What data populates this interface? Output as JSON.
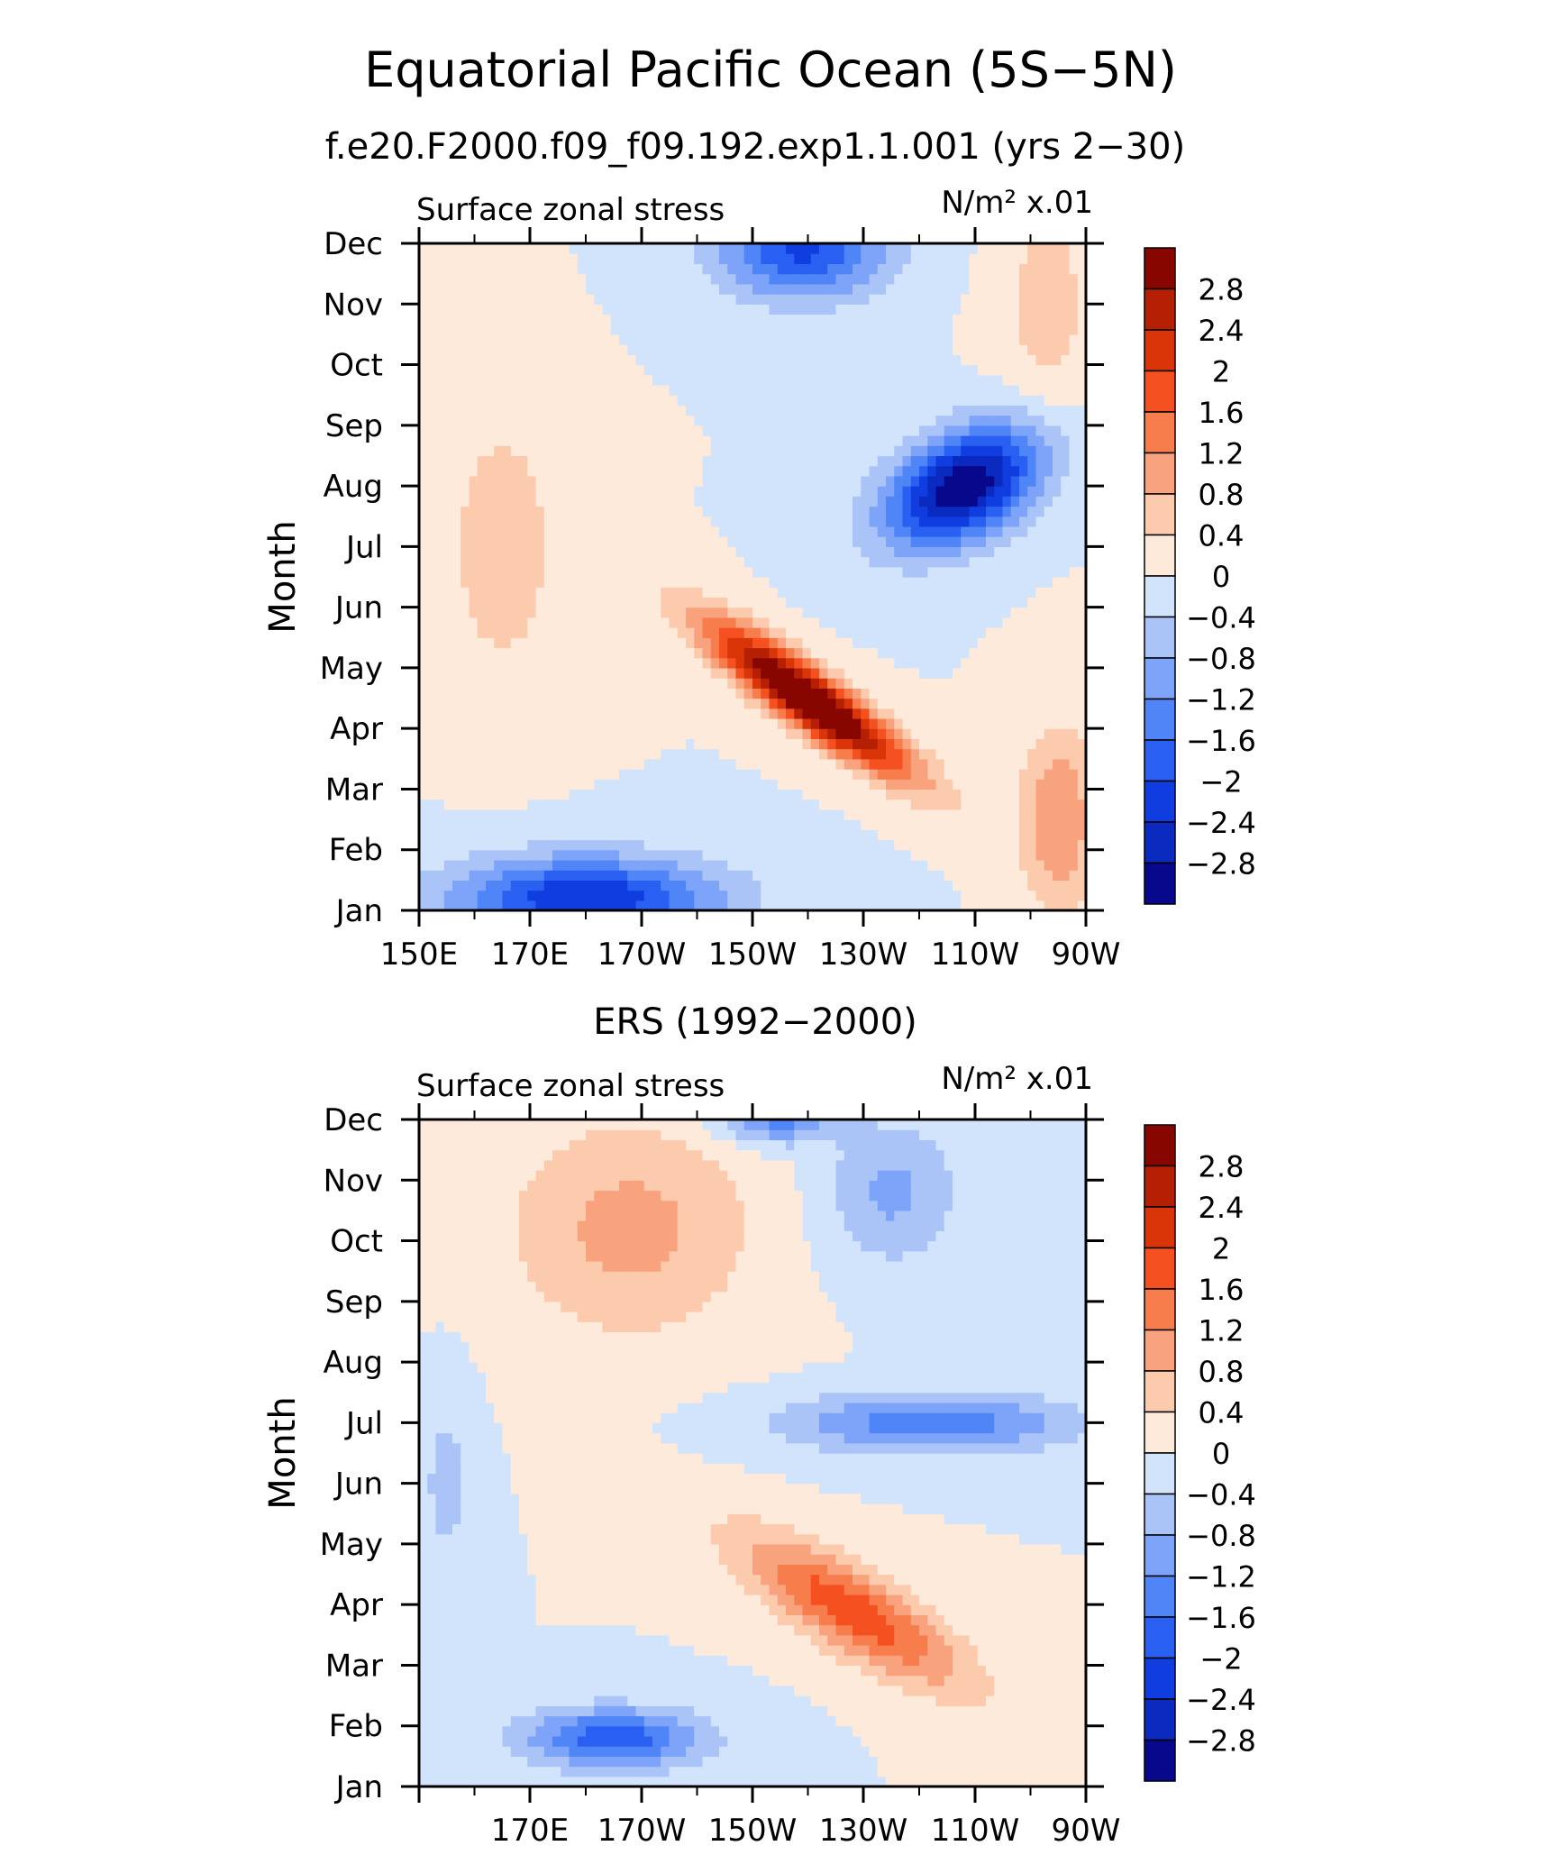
{
  "figure": {
    "title": "Equatorial Pacific Ocean (5S−5N)"
  },
  "colorbar": {
    "colors": [
      "#08088c",
      "#0a2ac0",
      "#0f3de0",
      "#2a60f2",
      "#4f85f6",
      "#7da4f8",
      "#aac4f8",
      "#d2e4fc",
      "#feeadb",
      "#fccaac",
      "#f9a37e",
      "#f77d4d",
      "#f45020",
      "#da3508",
      "#b52005",
      "#880600"
    ],
    "levels": [
      "2.8",
      "2.4",
      "2",
      "1.6",
      "1.2",
      "0.8",
      "0.4",
      "0",
      "−0.4",
      "−0.8",
      "−1.2",
      "−1.6",
      "−2",
      "−2.4",
      "−2.8"
    ]
  },
  "chart_data": [
    {
      "type": "heatmap",
      "subtitle": "f.e20.F2000.f09_f09.192.exp1.1.001 (yrs 2−30)",
      "left_label": "Surface zonal stress",
      "right_label": "N/m² x.01",
      "ylabel": "Month",
      "xlabel": "",
      "x_ticks": [
        "150E",
        "170E",
        "170W",
        "150W",
        "130W",
        "110W",
        "90W"
      ],
      "y_ticks": [
        "Jan",
        "Feb",
        "Mar",
        "Apr",
        "May",
        "Jun",
        "Jul",
        "Aug",
        "Sep",
        "Oct",
        "Nov",
        "Dec"
      ],
      "x_range_deg_east": [
        150,
        270
      ],
      "y_range": [
        "Jan",
        "Dec"
      ],
      "contour_levels": [
        -2.8,
        -2.4,
        -2,
        -1.6,
        -1.2,
        -0.8,
        -0.4,
        0,
        0.4,
        0.8,
        1.2,
        1.6,
        2,
        2.4,
        2.8
      ],
      "features": [
        {
          "lon": 220,
          "month": 3.5,
          "amp": 3.8,
          "slon": 18,
          "smon": 0.55,
          "slope": -0.062
        },
        {
          "lon": 165,
          "month": 6.0,
          "amp": 0.7,
          "slon": 10,
          "smon": 2.2,
          "slope": 0
        },
        {
          "lon": 248,
          "month": 7.0,
          "amp": -3.2,
          "slon": 14,
          "smon": 0.9,
          "slope": 0.03
        },
        {
          "lon": 219,
          "month": 10.9,
          "amp": -2.1,
          "slon": 15,
          "smon": 0.8,
          "slope": 0
        },
        {
          "lon": 180,
          "month": 0.2,
          "amp": -2.4,
          "slon": 24,
          "smon": 0.7,
          "slope": 0
        },
        {
          "lon": 263,
          "month": 10.0,
          "amp": 0.6,
          "slon": 8,
          "smon": 2.0,
          "slope": 0
        },
        {
          "lon": 265,
          "month": 1.5,
          "amp": 1.2,
          "slon": 7,
          "smon": 1.5,
          "slope": 0
        }
      ]
    },
    {
      "type": "heatmap",
      "subtitle": "ERS (1992−2000)",
      "left_label": "Surface zonal stress",
      "right_label": "N/m² x.01",
      "ylabel": "Month",
      "xlabel": "",
      "x_ticks": [
        "170E",
        "170W",
        "150W",
        "130W",
        "110W",
        "90W"
      ],
      "y_ticks": [
        "Jan",
        "Feb",
        "Mar",
        "Apr",
        "May",
        "Jun",
        "Jul",
        "Aug",
        "Sep",
        "Oct",
        "Nov",
        "Dec"
      ],
      "x_range_deg_east": [
        150,
        270
      ],
      "y_range": [
        "Jan",
        "Dec"
      ],
      "contour_levels": [
        -2.8,
        -2.4,
        -2,
        -1.6,
        -1.2,
        -0.8,
        -0.4,
        0,
        0.4,
        0.8,
        1.2,
        1.6,
        2,
        2.4,
        2.8
      ],
      "features": [
        {
          "lon": 228,
          "month": 2.9,
          "amp": 1.9,
          "slon": 20,
          "smon": 0.75,
          "slope": -0.05
        },
        {
          "lon": 188,
          "month": 9.2,
          "amp": 0.95,
          "slon": 22,
          "smon": 1.8,
          "slope": 0
        },
        {
          "lon": 242,
          "month": 6.0,
          "amp": -1.5,
          "slon": 26,
          "smon": 0.5,
          "slope": 0
        },
        {
          "lon": 185,
          "month": 0.8,
          "amp": -1.9,
          "slon": 16,
          "smon": 0.5,
          "slope": 0
        },
        {
          "lon": 214,
          "month": 11.0,
          "amp": -1.4,
          "slon": 10,
          "smon": 0.4,
          "slope": 0
        },
        {
          "lon": 235,
          "month": 9.8,
          "amp": -0.9,
          "slon": 12,
          "smon": 1.2,
          "slope": 0
        },
        {
          "lon": 155,
          "month": 5.0,
          "amp": -0.55,
          "slon": 5,
          "smon": 1.6,
          "slope": 0
        }
      ]
    }
  ]
}
